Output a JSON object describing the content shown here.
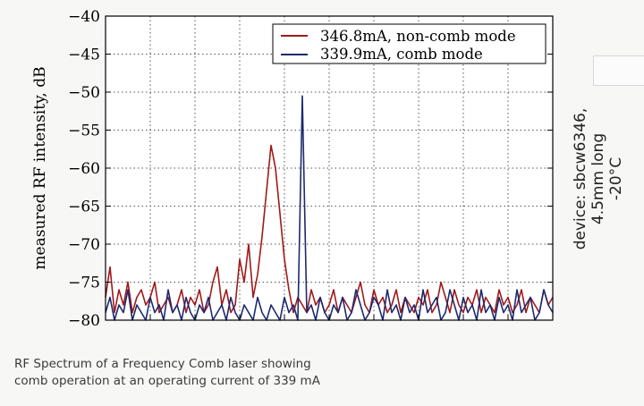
{
  "chart_data": {
    "type": "line",
    "title": "",
    "xlabel": "",
    "ylabel": "measured RF intensity, dB",
    "xlim": [
      0,
      100
    ],
    "ylim": [
      -80,
      -40
    ],
    "yticks": [
      -40,
      -45,
      -50,
      -55,
      -60,
      -65,
      -70,
      -75,
      -80
    ],
    "ytick_labels": [
      "−40",
      "−45",
      "−50",
      "−55",
      "−60",
      "−65",
      "−70",
      "−75",
      "−80"
    ],
    "xgrid": [
      0,
      10,
      20,
      30,
      40,
      50,
      60,
      70,
      80,
      90,
      100
    ],
    "grid": true,
    "legend_position": "top-right",
    "series": [
      {
        "name": "346.8mA, non-comb mode",
        "color": "#a01a1a",
        "x": [
          0,
          1,
          2,
          3,
          4,
          5,
          6,
          7,
          8,
          9,
          10,
          11,
          12,
          13,
          14,
          15,
          16,
          17,
          18,
          19,
          20,
          21,
          22,
          23,
          24,
          25,
          26,
          27,
          28,
          29,
          30,
          31,
          32,
          33,
          34,
          35,
          36,
          37,
          38,
          39,
          40,
          41,
          42,
          43,
          44,
          45,
          46,
          47,
          48,
          49,
          50,
          51,
          52,
          53,
          54,
          55,
          56,
          57,
          58,
          59,
          60,
          61,
          62,
          63,
          64,
          65,
          66,
          67,
          68,
          69,
          70,
          71,
          72,
          73,
          74,
          75,
          76,
          77,
          78,
          79,
          80,
          81,
          82,
          83,
          84,
          85,
          86,
          87,
          88,
          89,
          90,
          91,
          92,
          93,
          94,
          95,
          96,
          97,
          98,
          99,
          100
        ],
        "y": [
          -77,
          -73,
          -79,
          -76,
          -78,
          -75,
          -79,
          -77,
          -76,
          -78,
          -77,
          -75,
          -79,
          -78,
          -77,
          -79,
          -78,
          -76,
          -79,
          -77,
          -78,
          -76,
          -79,
          -78,
          -75,
          -73,
          -78,
          -76,
          -79,
          -78,
          -72,
          -75,
          -70,
          -77,
          -74,
          -69,
          -63,
          -57,
          -60,
          -66,
          -72,
          -76,
          -79,
          -77,
          -78,
          -79,
          -76,
          -78,
          -77,
          -79,
          -78,
          -76,
          -79,
          -77,
          -78,
          -79,
          -77,
          -75,
          -78,
          -79,
          -76,
          -78,
          -77,
          -79,
          -78,
          -76,
          -79,
          -77,
          -78,
          -79,
          -77,
          -78,
          -76,
          -79,
          -78,
          -75,
          -77,
          -79,
          -76,
          -78,
          -79,
          -77,
          -78,
          -76,
          -79,
          -77,
          -78,
          -79,
          -76,
          -78,
          -77,
          -79,
          -78,
          -76,
          -79,
          -77,
          -78,
          -79,
          -76,
          -78,
          -77
        ]
      },
      {
        "name": "339.9mA, comb mode",
        "color": "#1c2a6e",
        "x": [
          0,
          1,
          2,
          3,
          4,
          5,
          6,
          7,
          8,
          9,
          10,
          11,
          12,
          13,
          14,
          15,
          16,
          17,
          18,
          19,
          20,
          21,
          22,
          23,
          24,
          25,
          26,
          27,
          28,
          29,
          30,
          31,
          32,
          33,
          34,
          35,
          36,
          37,
          38,
          39,
          40,
          41,
          42,
          43,
          44,
          45,
          46,
          47,
          48,
          49,
          50,
          51,
          52,
          53,
          54,
          55,
          56,
          57,
          58,
          59,
          60,
          61,
          62,
          63,
          64,
          65,
          66,
          67,
          68,
          69,
          70,
          71,
          72,
          73,
          74,
          75,
          76,
          77,
          78,
          79,
          80,
          81,
          82,
          83,
          84,
          85,
          86,
          87,
          88,
          89,
          90,
          91,
          92,
          93,
          94,
          95,
          96,
          97,
          98,
          99,
          100
        ],
        "y": [
          -79,
          -77,
          -80,
          -78,
          -79,
          -76,
          -80,
          -78,
          -79,
          -80,
          -77,
          -79,
          -78,
          -80,
          -76,
          -79,
          -78,
          -80,
          -77,
          -79,
          -80,
          -78,
          -79,
          -77,
          -80,
          -79,
          -78,
          -80,
          -77,
          -79,
          -80,
          -78,
          -79,
          -80,
          -77,
          -79,
          -80,
          -78,
          -79,
          -80,
          -77,
          -79,
          -78,
          -80,
          -50.5,
          -79,
          -78,
          -80,
          -77,
          -79,
          -80,
          -78,
          -79,
          -77,
          -80,
          -79,
          -76,
          -78,
          -80,
          -79,
          -77,
          -78,
          -80,
          -76,
          -79,
          -78,
          -80,
          -77,
          -79,
          -78,
          -80,
          -76,
          -79,
          -78,
          -77,
          -80,
          -79,
          -76,
          -78,
          -80,
          -77,
          -79,
          -78,
          -80,
          -76,
          -79,
          -78,
          -80,
          -77,
          -79,
          -78,
          -80,
          -76,
          -79,
          -78,
          -77,
          -80,
          -79,
          -76,
          -78,
          -79
        ]
      }
    ]
  },
  "side_label": {
    "line1": "device: sbcw6346,",
    "line2": "4.5mm long",
    "line3": "-20°C"
  },
  "caption": {
    "line1": "RF Spectrum of a Frequency Comb laser showing",
    "line2": "comb operation at an operating current of 339 mA"
  }
}
